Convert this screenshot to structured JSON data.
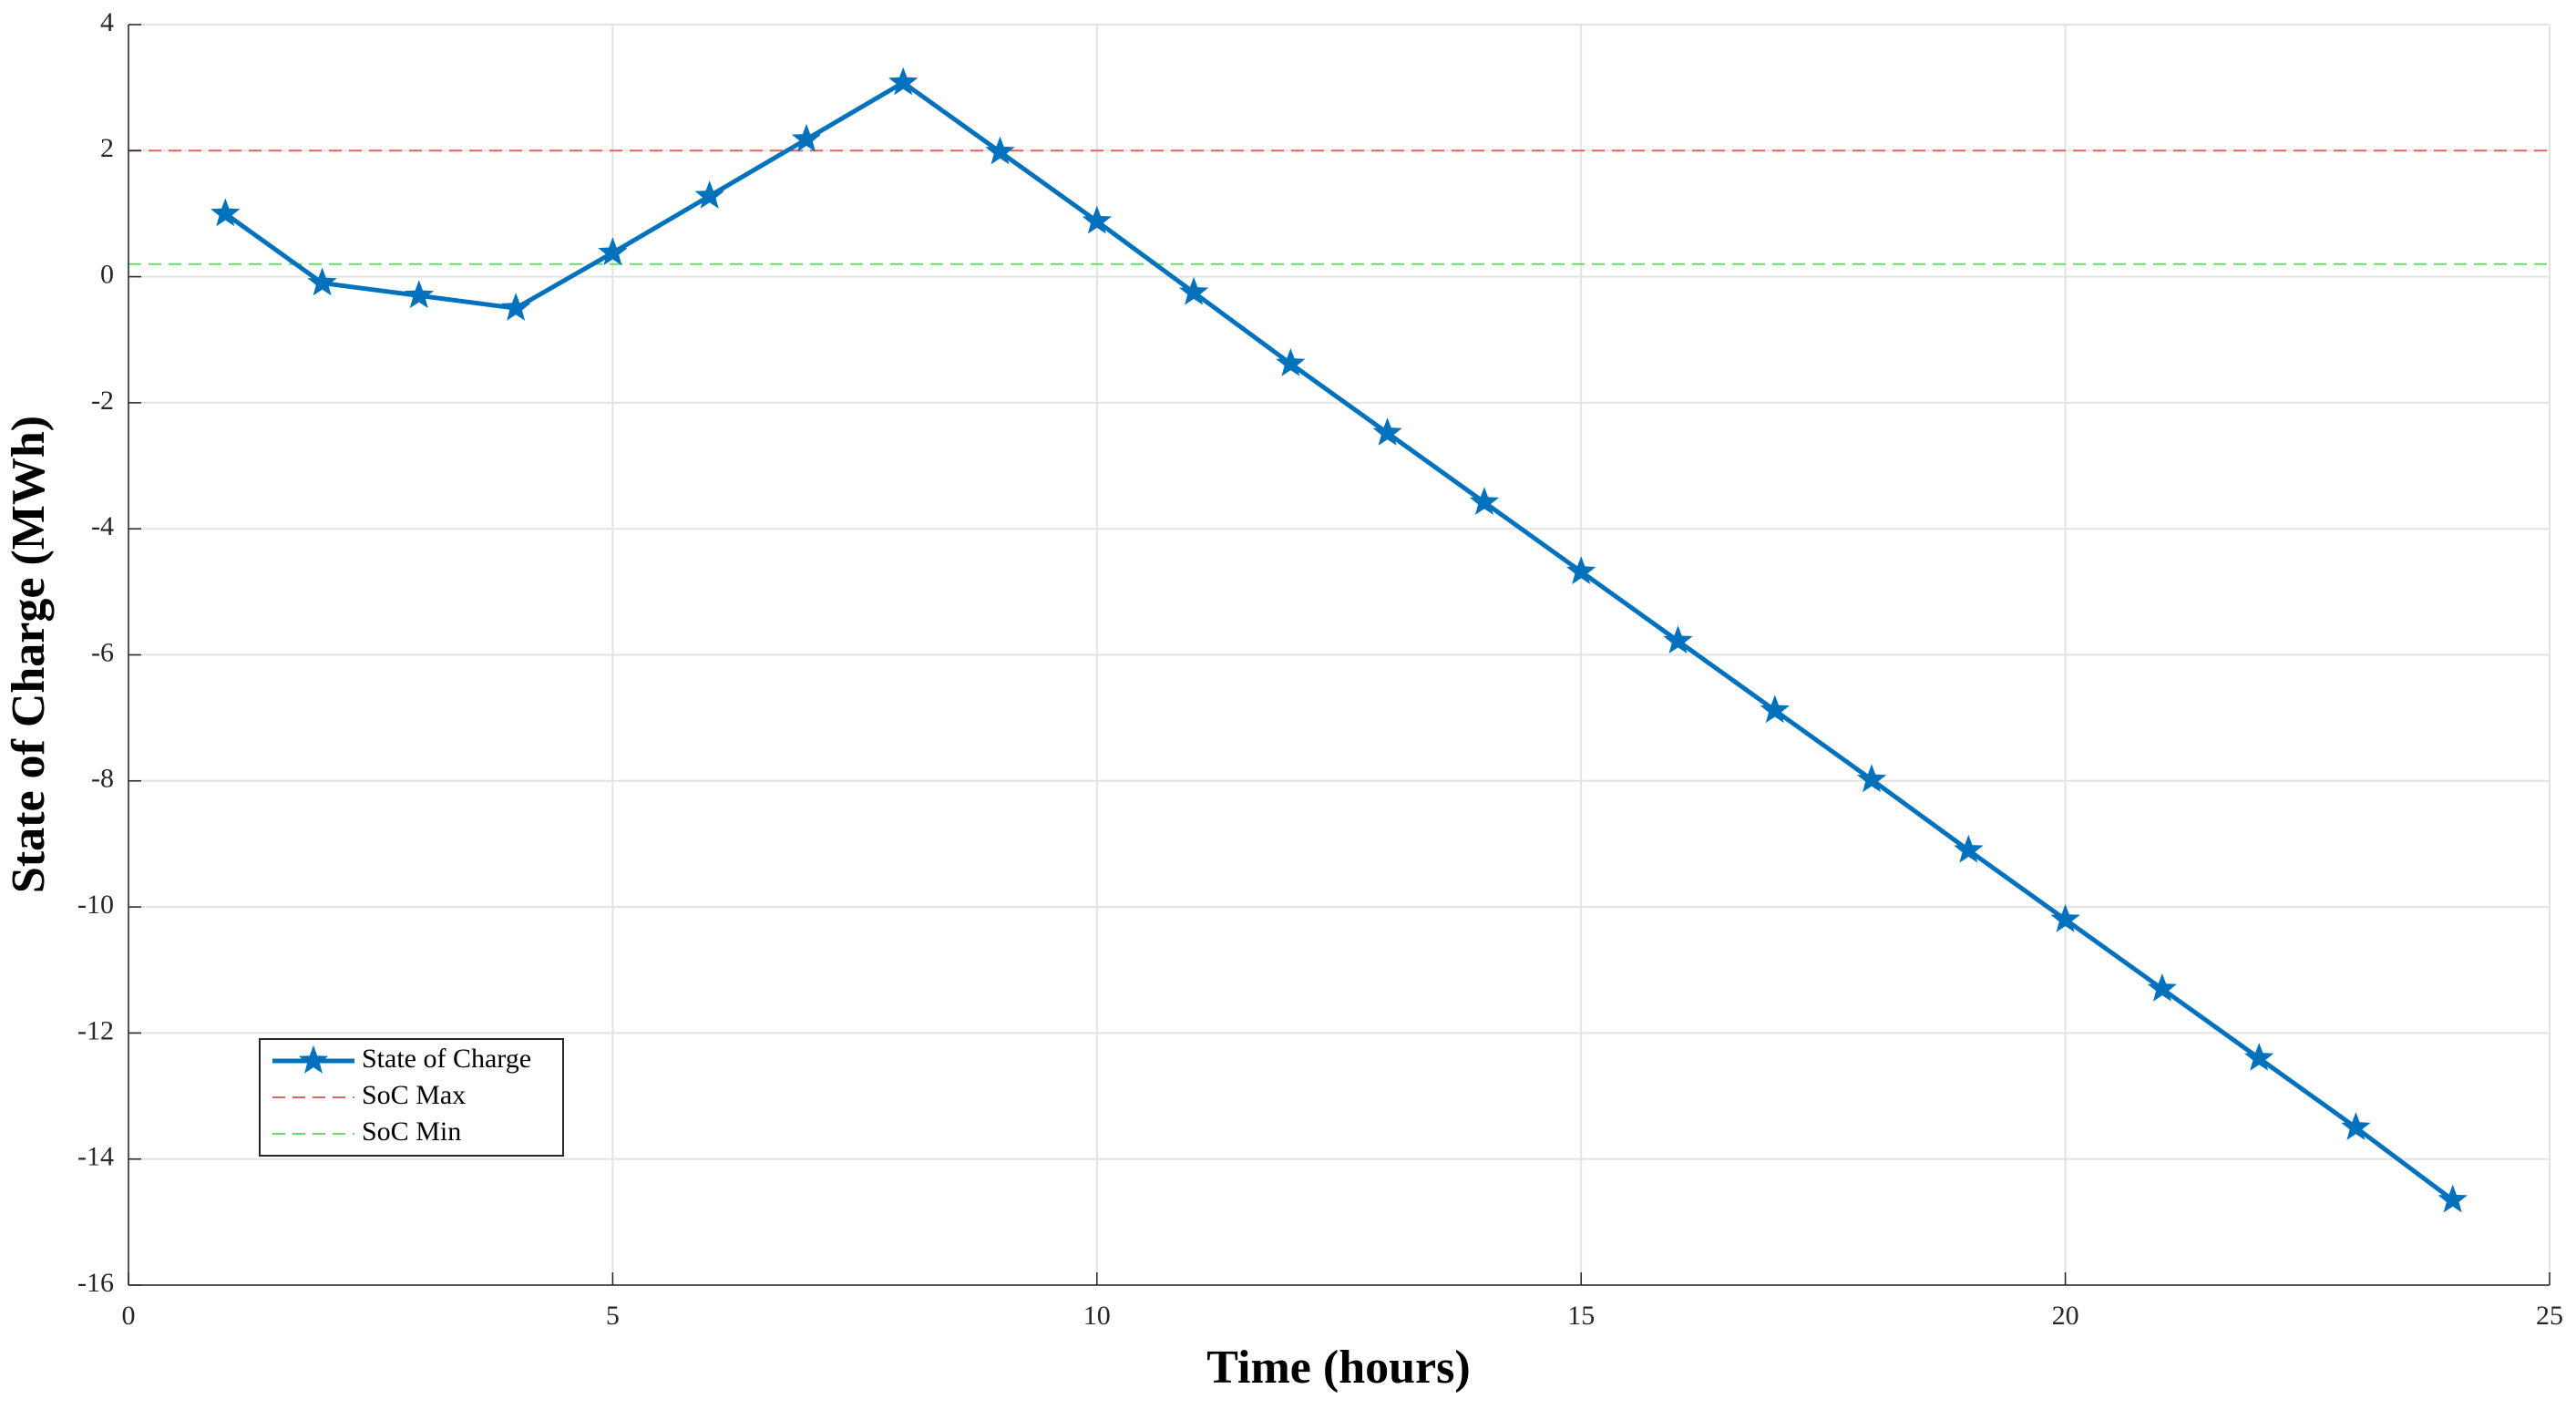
{
  "chart_data": {
    "type": "line",
    "x_label": "Time (hours)",
    "y_label": "State of Charge (MWh)",
    "x": [
      1,
      2,
      3,
      4,
      5,
      6,
      7,
      8,
      9,
      10,
      11,
      12,
      13,
      14,
      15,
      16,
      17,
      18,
      19,
      20,
      21,
      22,
      23,
      24
    ],
    "series": [
      {
        "name": "State of Charge",
        "color": "#0072bd",
        "values": [
          1.0,
          -0.1,
          -0.3,
          -0.5,
          0.38,
          1.28,
          2.18,
          3.08,
          1.98,
          0.88,
          -0.25,
          -1.38,
          -2.48,
          -3.58,
          -4.68,
          -5.78,
          -6.88,
          -7.98,
          -9.1,
          -10.2,
          -11.3,
          -12.4,
          -13.5,
          -14.65
        ]
      }
    ],
    "reference_lines": [
      {
        "name": "SoC Max",
        "value": 2,
        "color": "#e06666"
      },
      {
        "name": "SoC Min",
        "value": 0.2,
        "color": "#66dd66"
      }
    ],
    "xlim": [
      0,
      25
    ],
    "xticks": [
      0,
      5,
      10,
      15,
      20,
      25
    ],
    "ylim": [
      -16,
      4
    ],
    "yticks": [
      -16,
      -14,
      -12,
      -10,
      -8,
      -6,
      -4,
      -2,
      0,
      2,
      4
    ],
    "grid": true,
    "legend": "lower left"
  }
}
